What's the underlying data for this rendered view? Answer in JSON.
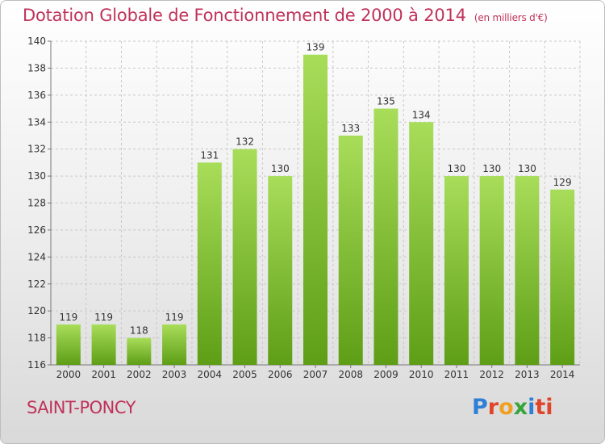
{
  "header": {
    "title": "Dotation Globale de Fonctionnement de 2000 à 2014",
    "unit": "(en milliers d'€)"
  },
  "footer": {
    "commune": "SAINT-PONCY",
    "logo_letters": [
      "P",
      "r",
      "o",
      "x",
      "i",
      "ti"
    ]
  },
  "colors": {
    "title": "#c0325a",
    "bar_top": "#a8dd5a",
    "bar_bottom": "#5e9e16",
    "grid": "#c8c8c8"
  },
  "chart_data": {
    "type": "bar",
    "title": "Dotation Globale de Fonctionnement de 2000 à 2014",
    "subtitle": "(en milliers d'€)",
    "xlabel": "",
    "ylabel": "",
    "categories": [
      "2000",
      "2001",
      "2002",
      "2003",
      "2004",
      "2005",
      "2006",
      "2007",
      "2008",
      "2009",
      "2010",
      "2011",
      "2012",
      "2013",
      "2014"
    ],
    "values": [
      119,
      119,
      118,
      119,
      131,
      132,
      130,
      139,
      133,
      135,
      134,
      130,
      130,
      130,
      129
    ],
    "ylim": [
      116,
      140
    ],
    "yticks": [
      116,
      118,
      120,
      122,
      124,
      126,
      128,
      130,
      132,
      134,
      136,
      138,
      140
    ],
    "grid": true,
    "legend": "none"
  }
}
